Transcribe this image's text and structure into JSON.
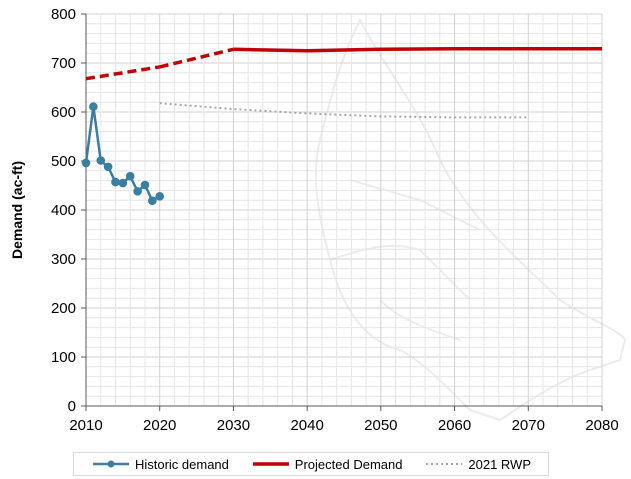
{
  "chart_data": {
    "type": "line",
    "title": "",
    "xlabel": "",
    "ylabel": "Demand (ac-ft)",
    "xlim": [
      2010,
      2080
    ],
    "ylim": [
      0,
      800
    ],
    "x_ticks": [
      "2010",
      "2020",
      "2030",
      "2040",
      "2050",
      "2060",
      "2070",
      "2080"
    ],
    "y_ticks": [
      "0",
      "100",
      "200",
      "300",
      "400",
      "500",
      "600",
      "700",
      "800"
    ],
    "grid": true,
    "legend_position": "bottom",
    "series": [
      {
        "name": "Historic demand",
        "color": "#3a7ea1",
        "style": "solid-markers",
        "x": [
          2010,
          2011,
          2012,
          2013,
          2014,
          2015,
          2016,
          2017,
          2018,
          2019,
          2020
        ],
        "y": [
          496,
          611,
          501,
          488,
          457,
          455,
          469,
          438,
          451,
          419,
          428
        ]
      },
      {
        "name": "Projected Demand",
        "color": "#c00000",
        "style": "dashed-then-solid",
        "x": [
          2010,
          2020,
          2030,
          2040,
          2050,
          2060,
          2070,
          2080
        ],
        "y": [
          668,
          692,
          728,
          725,
          728,
          729,
          729,
          729
        ]
      },
      {
        "name": "2021 RWP",
        "color": "#a6a6a6",
        "style": "dotted",
        "x": [
          2020,
          2030,
          2040,
          2050,
          2060,
          2070
        ],
        "y": [
          618,
          606,
          597,
          591,
          589,
          589
        ]
      }
    ]
  }
}
